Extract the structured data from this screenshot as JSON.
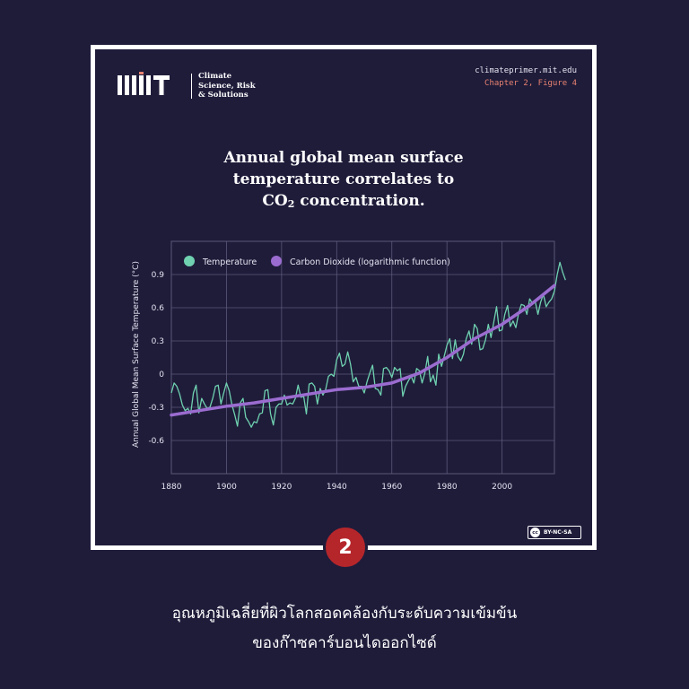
{
  "header": {
    "logo_lines": [
      "Climate",
      "Science, Risk",
      "& Solutions"
    ],
    "site_url": "climateprimer.mit.edu",
    "chapter_label": "Chapter 2, Figure 4"
  },
  "license": "BY-NC-SA",
  "figure_number": "2",
  "caption_lines": [
    "อุณหภูมิเฉลี่ยที่ผิวโลกสอดคล้องกับระดับความเข้มข้น",
    "ของก๊าซคาร์บอนไดออกไซด์"
  ],
  "colors": {
    "background": "#1f1c3a",
    "temperature": "#6fd1b0",
    "co2": "#9b6cd0",
    "grid": "#5b5878",
    "badge": "#b5262b",
    "chapter": "#e8826f"
  },
  "chart_data": {
    "type": "line",
    "title_lines": [
      "Annual global mean surface",
      "temperature correlates to"
    ],
    "title_co2": "CO",
    "title_co2_sub": "2",
    "title_tail": " concentration.",
    "xlabel": "",
    "ylabel": "Annual Global Mean Surface Temperature (°C)",
    "xlim": [
      1880,
      2019
    ],
    "ylim": [
      -0.9,
      1.2
    ],
    "x_ticks": [
      1880,
      1900,
      1920,
      1940,
      1960,
      1980,
      2000
    ],
    "y_ticks": [
      -0.6,
      -0.3,
      0,
      0.3,
      0.6,
      0.9
    ],
    "y_tick_labels": [
      "-0.6",
      "-0.3",
      "0",
      "0.3",
      "0.6",
      "0.9"
    ],
    "grid": true,
    "legend_position": "top-left",
    "series": [
      {
        "name": "Temperature",
        "x_start": 1880,
        "values": [
          -0.17,
          -0.08,
          -0.11,
          -0.18,
          -0.28,
          -0.33,
          -0.31,
          -0.36,
          -0.17,
          -0.1,
          -0.35,
          -0.22,
          -0.27,
          -0.31,
          -0.3,
          -0.22,
          -0.11,
          -0.1,
          -0.27,
          -0.17,
          -0.08,
          -0.15,
          -0.28,
          -0.37,
          -0.47,
          -0.26,
          -0.22,
          -0.39,
          -0.43,
          -0.48,
          -0.43,
          -0.44,
          -0.36,
          -0.35,
          -0.15,
          -0.14,
          -0.36,
          -0.46,
          -0.3,
          -0.27,
          -0.27,
          -0.19,
          -0.28,
          -0.26,
          -0.27,
          -0.22,
          -0.1,
          -0.21,
          -0.2,
          -0.36,
          -0.09,
          -0.08,
          -0.11,
          -0.27,
          -0.13,
          -0.19,
          -0.14,
          -0.02,
          -0.0,
          -0.02,
          0.13,
          0.19,
          0.07,
          0.09,
          0.2,
          0.09,
          -0.07,
          -0.03,
          -0.11,
          -0.11,
          -0.17,
          -0.07,
          0.01,
          0.08,
          -0.13,
          -0.14,
          -0.19,
          0.05,
          0.06,
          0.03,
          -0.03,
          0.06,
          0.03,
          0.05,
          -0.2,
          -0.11,
          -0.06,
          -0.02,
          -0.08,
          0.05,
          0.03,
          -0.08,
          0.01,
          0.16,
          -0.07,
          -0.01,
          -0.1,
          0.18,
          0.07,
          0.16,
          0.26,
          0.32,
          0.14,
          0.31,
          0.16,
          0.12,
          0.18,
          0.32,
          0.39,
          0.27,
          0.45,
          0.41,
          0.22,
          0.23,
          0.31,
          0.45,
          0.33,
          0.47,
          0.61,
          0.39,
          0.4,
          0.54,
          0.62,
          0.43,
          0.48,
          0.42,
          0.55,
          0.63,
          0.62,
          0.54,
          0.68,
          0.64,
          0.66,
          0.54,
          0.65,
          0.72,
          0.61,
          0.65,
          0.68,
          0.75,
          0.9,
          1.01,
          0.92,
          0.85
        ]
      },
      {
        "name": "Carbon Dioxide (logarithmic function)",
        "x": [
          1880,
          1890,
          1900,
          1910,
          1920,
          1930,
          1940,
          1950,
          1960,
          1970,
          1980,
          1990,
          2000,
          2010,
          2019
        ],
        "values": [
          -0.37,
          -0.33,
          -0.29,
          -0.26,
          -0.22,
          -0.18,
          -0.14,
          -0.12,
          -0.08,
          0.01,
          0.15,
          0.32,
          0.45,
          0.62,
          0.8
        ]
      }
    ]
  }
}
